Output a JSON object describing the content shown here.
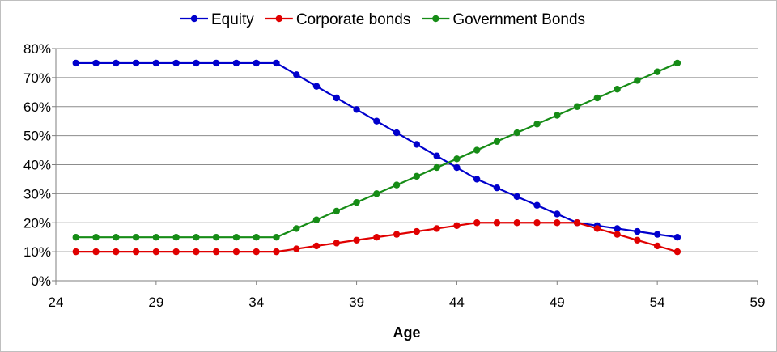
{
  "chart_data": {
    "type": "line",
    "title": "",
    "xlabel": "Age",
    "ylabel": "",
    "xlim": [
      24,
      59
    ],
    "ylim": [
      0,
      80
    ],
    "x_ticks": [
      "24",
      "29",
      "34",
      "39",
      "44",
      "49",
      "54",
      "59"
    ],
    "y_ticks": [
      "0%",
      "10%",
      "20%",
      "30%",
      "40%",
      "50%",
      "60%",
      "70%",
      "80%"
    ],
    "grid": "horizontal",
    "legend_position": "top",
    "x": [
      25,
      26,
      27,
      28,
      29,
      30,
      31,
      32,
      33,
      34,
      35,
      36,
      37,
      38,
      39,
      40,
      41,
      42,
      43,
      44,
      45,
      46,
      47,
      48,
      49,
      50,
      51,
      52,
      53,
      54,
      55
    ],
    "series": [
      {
        "name": "Equity",
        "color": "#0000cc",
        "values": [
          75,
          75,
          75,
          75,
          75,
          75,
          75,
          75,
          75,
          75,
          75,
          71,
          67,
          63,
          59,
          55,
          51,
          47,
          43,
          39,
          35,
          32,
          29,
          26,
          23,
          20,
          19,
          18,
          17,
          16,
          15
        ]
      },
      {
        "name": "Corporate bonds",
        "color": "#e00000",
        "values": [
          10,
          10,
          10,
          10,
          10,
          10,
          10,
          10,
          10,
          10,
          10,
          11,
          12,
          13,
          14,
          15,
          16,
          17,
          18,
          19,
          20,
          20,
          20,
          20,
          20,
          20,
          18,
          16,
          14,
          12,
          10
        ]
      },
      {
        "name": "Government Bonds",
        "color": "#168c16",
        "values": [
          15,
          15,
          15,
          15,
          15,
          15,
          15,
          15,
          15,
          15,
          15,
          18,
          21,
          24,
          27,
          30,
          33,
          36,
          39,
          42,
          45,
          48,
          51,
          54,
          57,
          60,
          63,
          66,
          69,
          72,
          75
        ]
      }
    ]
  }
}
